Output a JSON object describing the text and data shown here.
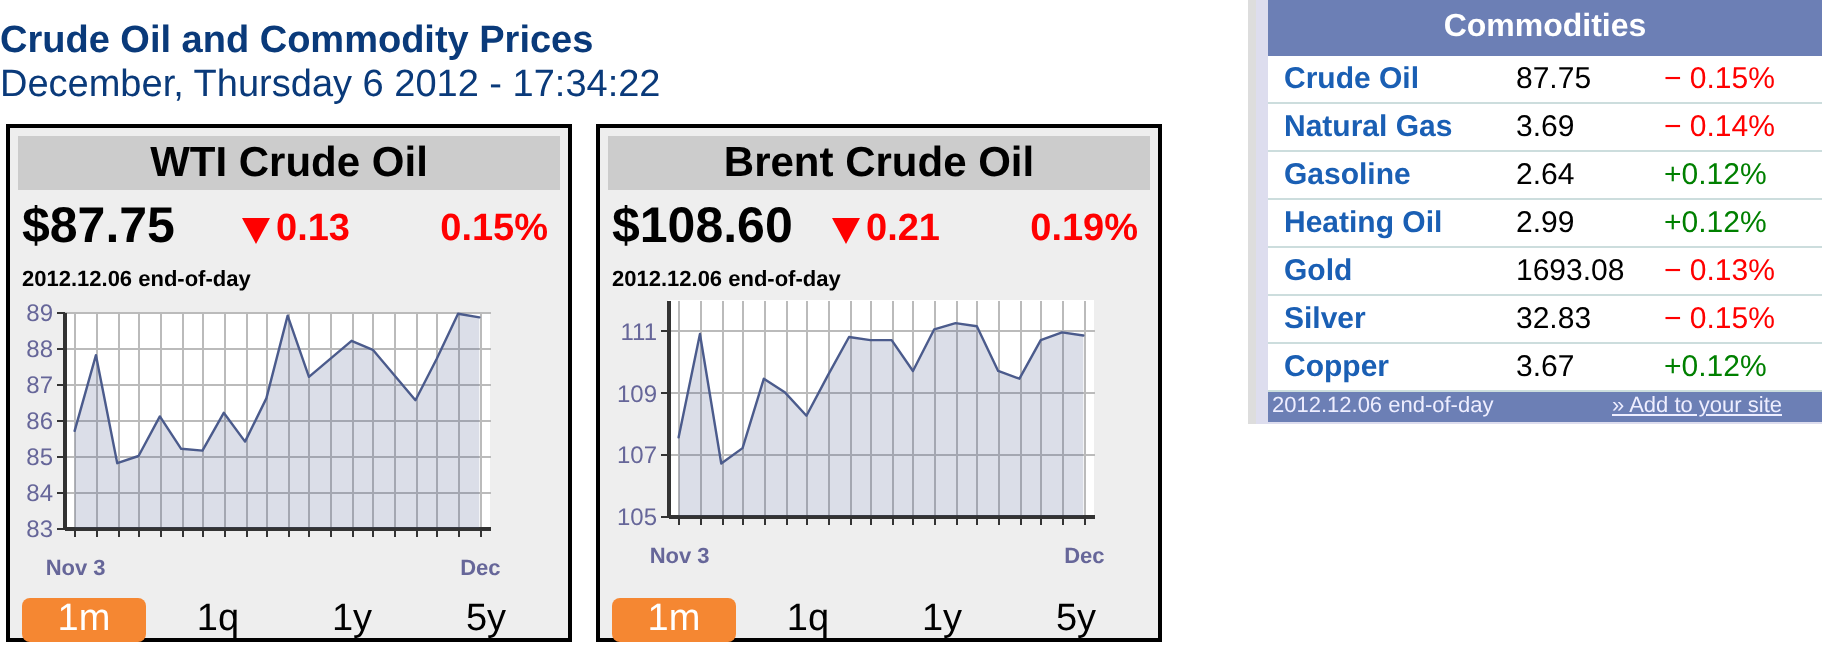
{
  "chart_data": [
    {
      "type": "other",
      "title": "Crude Oil and Commodity Prices",
      "subtitle": "December, Thursday 6 2012 - 17:34:22"
    },
    {
      "type": "area",
      "title": "WTI Crude Oil",
      "annotations": [
        "$87.75",
        "0.13",
        "0.15%",
        "2012.12.06 end-of-day",
        "1m",
        "1q",
        "1y",
        "5y"
      ],
      "categories": [
        "Nov 3",
        null,
        null,
        null,
        null,
        null,
        null,
        null,
        null,
        null,
        null,
        null,
        null,
        null,
        null,
        null,
        null,
        null,
        null,
        "Dec"
      ],
      "values": [
        85.7,
        87.8,
        84.8,
        85.0,
        86.1,
        85.2,
        85.15,
        86.2,
        85.4,
        86.6,
        88.9,
        87.2,
        87.7,
        88.2,
        87.95,
        87.25,
        86.55,
        87.7,
        88.95,
        88.85
      ],
      "color": "#4b5b8c",
      "ylim": [
        83,
        89
      ],
      "yticks": [
        83,
        84,
        85,
        86,
        87,
        88,
        89
      ],
      "grid": true
    },
    {
      "type": "area",
      "title": "Brent Crude Oil",
      "annotations": [
        "$108.60",
        "0.21",
        "0.19%",
        "2012.12.06 end-of-day",
        "1m",
        "1q",
        "1y",
        "5y"
      ],
      "categories": [
        "Nov 3",
        null,
        null,
        null,
        null,
        null,
        null,
        null,
        null,
        null,
        null,
        null,
        null,
        null,
        null,
        null,
        null,
        null,
        null,
        "Dec"
      ],
      "values": [
        107.55,
        110.9,
        106.7,
        107.2,
        109.45,
        109.0,
        108.25,
        109.55,
        110.8,
        110.7,
        110.7,
        109.7,
        111.05,
        111.25,
        111.15,
        109.7,
        109.45,
        110.7,
        110.95,
        110.85
      ],
      "color": "#4b5b8c",
      "ylim": [
        105,
        112
      ],
      "yticks": [
        105,
        107,
        109,
        111
      ],
      "grid": true
    },
    {
      "type": "other",
      "title": "Commodities",
      "colors": [
        "#ff0000",
        "#ff0000",
        "#008000",
        "#008000",
        "#ff0000",
        "#ff0000",
        "#008000"
      ],
      "annotations": [
        "Crude Oil",
        "87.75",
        "− 0.15%",
        "Natural Gas",
        "3.69",
        "− 0.14%",
        "Gasoline",
        "2.64",
        "+0.12%",
        "Heating Oil",
        "2.99",
        "+0.12%",
        "Gold",
        "1693.08",
        "− 0.13%",
        "Silver",
        "32.83",
        "− 0.15%",
        "Copper",
        "3.67",
        "+0.12%",
        "2012.12.06 end-of-day",
        "» Add to your site"
      ]
    }
  ]
}
